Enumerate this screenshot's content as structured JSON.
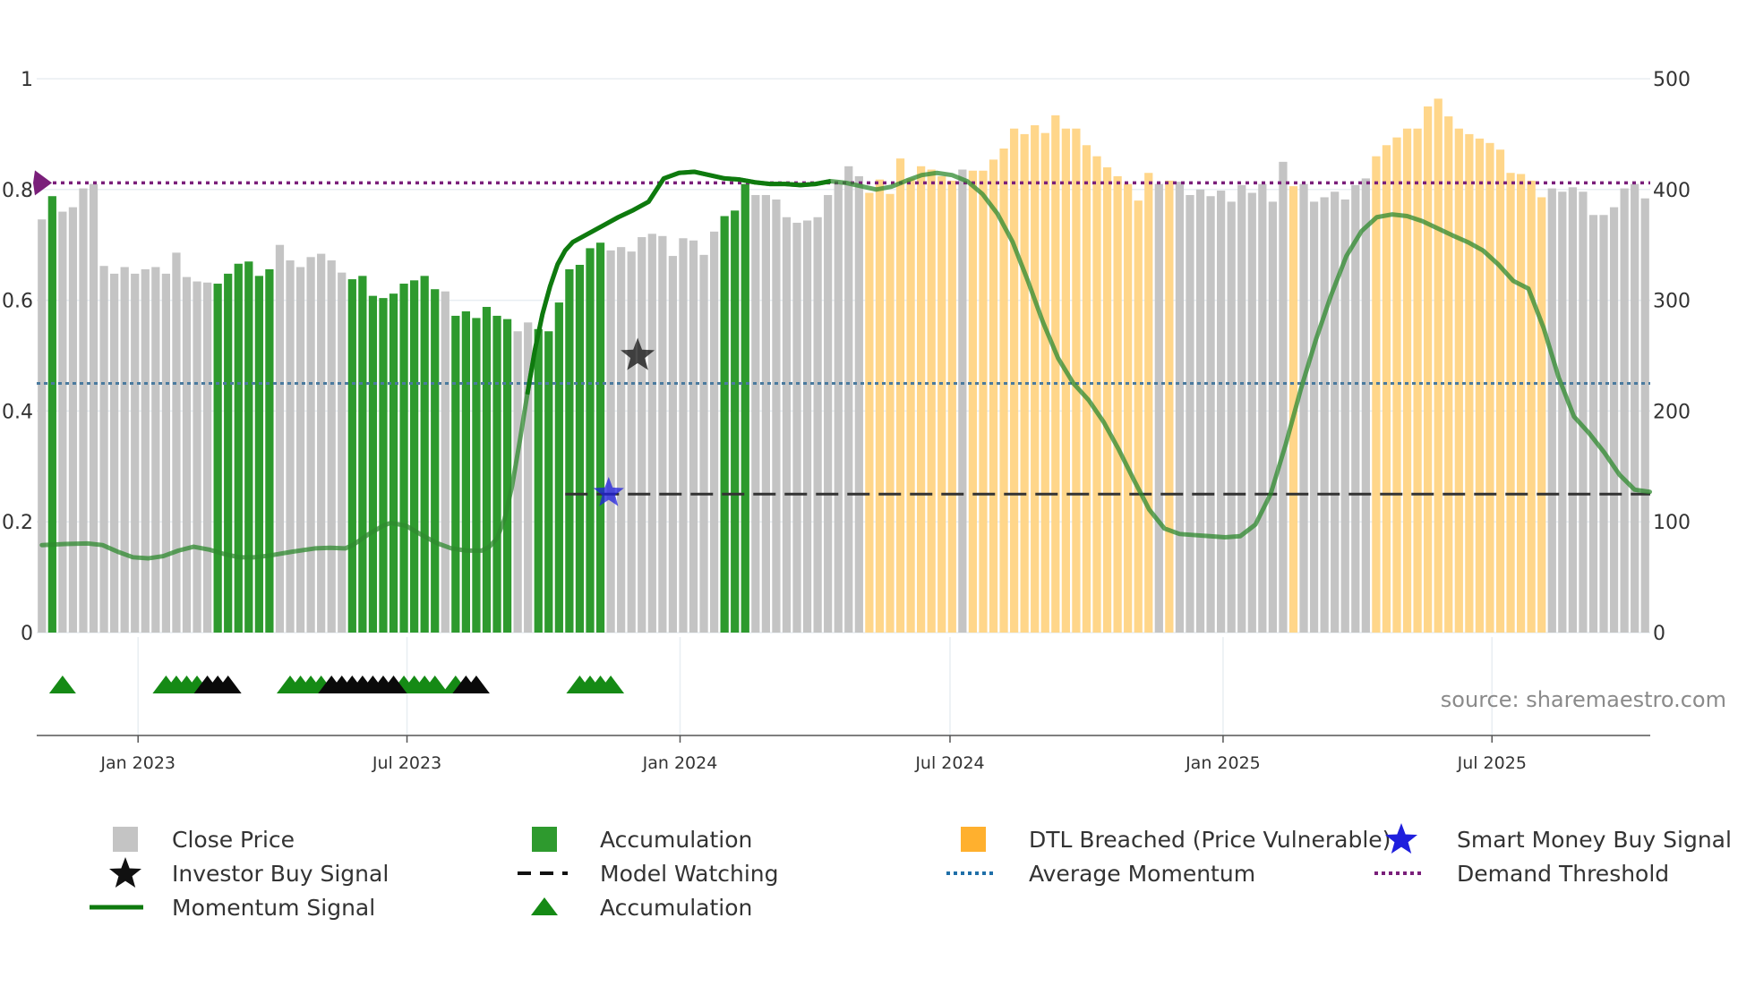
{
  "chart_data": {
    "type": "bar",
    "source": "source: sharemaestro.com",
    "left_axis": {
      "min": 0,
      "max": 1,
      "ticks": [
        {
          "v": 0,
          "label": "0"
        },
        {
          "v": 0.2,
          "label": "0.2"
        },
        {
          "v": 0.4,
          "label": "0.4"
        },
        {
          "v": 0.6,
          "label": "0.6"
        },
        {
          "v": 0.8,
          "label": "0.8"
        },
        {
          "v": 1,
          "label": "1"
        }
      ]
    },
    "right_axis": {
      "min": 0,
      "max": 500,
      "ticks": [
        {
          "v": 0,
          "label": "0"
        },
        {
          "v": 100,
          "label": "100"
        },
        {
          "v": 200,
          "label": "200"
        },
        {
          "v": 300,
          "label": "300"
        },
        {
          "v": 400,
          "label": "400"
        },
        {
          "v": 500,
          "label": "500"
        }
      ]
    },
    "x_ticks": [
      {
        "index": 9.3,
        "label": "Jan 2023"
      },
      {
        "index": 35.3,
        "label": "Jul 2023"
      },
      {
        "index": 61.7,
        "label": "Jan 2024"
      },
      {
        "index": 87.8,
        "label": "Jul 2024"
      },
      {
        "index": 114.2,
        "label": "Jan 2025"
      },
      {
        "index": 140.2,
        "label": "Jul 2025"
      }
    ],
    "close_price": [
      373,
      394,
      380,
      384,
      401,
      405,
      331,
      324,
      330,
      324,
      328,
      330,
      324,
      343,
      321,
      317,
      316,
      315,
      324,
      333,
      335,
      322,
      328,
      350,
      336,
      330,
      339,
      342,
      336,
      325,
      319,
      322,
      304,
      302,
      306,
      315,
      318,
      322,
      310,
      308,
      286,
      290,
      284,
      294,
      286,
      283,
      272,
      280,
      274,
      272,
      298,
      328,
      332,
      347,
      352,
      345,
      348,
      344,
      357,
      360,
      358,
      340,
      356,
      354,
      341,
      362,
      376,
      381,
      405,
      395,
      395,
      391,
      375,
      370,
      372,
      375,
      395,
      405,
      421,
      412,
      397,
      409,
      396,
      428,
      410,
      421,
      418,
      412,
      408,
      418,
      417,
      417,
      427,
      437,
      455,
      450,
      458,
      451,
      467,
      455,
      455,
      440,
      430,
      420,
      412,
      405,
      390,
      415,
      405,
      408,
      407,
      395,
      400,
      394,
      399,
      389,
      404,
      397,
      405,
      389,
      425,
      403,
      405,
      389,
      393,
      398,
      391,
      404,
      410,
      430,
      440,
      447,
      455,
      455,
      475,
      482,
      466,
      455,
      450,
      446,
      442,
      436,
      415,
      414,
      408,
      393,
      401,
      398,
      402,
      398,
      377,
      377,
      384,
      401,
      405,
      392
    ],
    "bar_state": "gabggggggggggggggaaaaaagggggggaaaaaaaaagaaaaaaggaaaaaaagggggggggggaaaggggggggggggggggggggggggggggggggggggggggggggggggggggggggggggggggggggggggggggggggggggggggggggg",
    "bar_state_dtl": [
      80,
      81,
      82,
      83,
      84,
      85,
      86,
      87,
      88,
      90,
      91,
      92,
      93,
      94,
      95,
      96,
      97,
      98,
      99,
      100,
      101,
      102,
      103,
      104,
      105,
      106,
      107,
      109,
      121,
      129,
      130,
      131,
      132,
      133,
      134,
      135,
      136,
      137,
      138,
      139,
      140,
      141,
      142,
      143,
      144,
      145
    ],
    "momentum": [
      [
        0,
        0.158
      ],
      [
        3,
        0.16
      ],
      [
        6,
        0.161
      ],
      [
        8,
        0.158
      ],
      [
        10,
        0.146
      ],
      [
        12,
        0.136
      ],
      [
        14,
        0.134
      ],
      [
        16,
        0.138
      ],
      [
        18,
        0.148
      ],
      [
        20,
        0.155
      ],
      [
        22,
        0.15
      ],
      [
        24,
        0.142
      ],
      [
        26,
        0.136
      ],
      [
        28,
        0.136
      ],
      [
        30,
        0.139
      ],
      [
        33,
        0.146
      ],
      [
        36,
        0.152
      ],
      [
        38,
        0.153
      ],
      [
        40,
        0.152
      ],
      [
        41,
        0.158
      ],
      [
        43,
        0.177
      ],
      [
        45,
        0.193
      ],
      [
        46,
        0.198
      ],
      [
        48,
        0.193
      ],
      [
        50,
        0.177
      ],
      [
        52,
        0.162
      ],
      [
        54,
        0.152
      ],
      [
        56,
        0.148
      ],
      [
        58,
        0.148
      ],
      [
        59,
        0.155
      ],
      [
        60,
        0.17
      ],
      [
        61,
        0.205
      ],
      [
        62,
        0.265
      ],
      [
        63,
        0.345
      ],
      [
        64,
        0.43
      ],
      [
        65,
        0.51
      ],
      [
        66,
        0.575
      ],
      [
        67,
        0.625
      ],
      [
        68,
        0.665
      ],
      [
        69,
        0.69
      ],
      [
        70,
        0.705
      ],
      [
        72,
        0.72
      ],
      [
        74,
        0.735
      ],
      [
        76,
        0.75
      ],
      [
        78,
        0.763
      ],
      [
        80,
        0.778
      ],
      [
        82,
        0.82
      ],
      [
        84,
        0.83
      ],
      [
        86,
        0.832
      ],
      [
        88,
        0.826
      ],
      [
        90,
        0.82
      ],
      [
        92,
        0.818
      ],
      [
        94,
        0.813
      ],
      [
        96,
        0.81
      ],
      [
        98,
        0.81
      ],
      [
        100,
        0.808
      ],
      [
        102,
        0.81
      ],
      [
        104,
        0.815
      ],
      [
        106,
        0.812
      ],
      [
        108,
        0.806
      ],
      [
        110,
        0.8
      ],
      [
        112,
        0.805
      ],
      [
        114,
        0.816
      ],
      [
        116,
        0.826
      ],
      [
        118,
        0.83
      ],
      [
        120,
        0.826
      ],
      [
        122,
        0.815
      ],
      [
        124,
        0.792
      ],
      [
        126,
        0.756
      ],
      [
        128,
        0.705
      ],
      [
        130,
        0.635
      ],
      [
        132,
        0.56
      ],
      [
        134,
        0.495
      ],
      [
        136,
        0.45
      ],
      [
        138,
        0.42
      ],
      [
        140,
        0.38
      ],
      [
        142,
        0.33
      ],
      [
        144,
        0.275
      ],
      [
        146,
        0.222
      ],
      [
        148,
        0.188
      ],
      [
        150,
        0.178
      ],
      [
        152,
        0.176
      ],
      [
        154,
        0.174
      ],
      [
        156,
        0.172
      ],
      [
        158,
        0.174
      ],
      [
        160,
        0.195
      ],
      [
        162,
        0.25
      ],
      [
        164,
        0.34
      ],
      [
        166,
        0.44
      ],
      [
        168,
        0.53
      ],
      [
        170,
        0.61
      ],
      [
        172,
        0.68
      ],
      [
        174,
        0.725
      ],
      [
        176,
        0.75
      ],
      [
        178,
        0.755
      ],
      [
        180,
        0.752
      ],
      [
        182,
        0.743
      ],
      [
        184,
        0.73
      ],
      [
        186,
        0.717
      ],
      [
        188,
        0.705
      ],
      [
        190,
        0.69
      ],
      [
        192,
        0.665
      ],
      [
        194,
        0.635
      ],
      [
        196,
        0.621
      ],
      [
        198,
        0.55
      ],
      [
        200,
        0.46
      ],
      [
        202,
        0.39
      ],
      [
        204,
        0.36
      ],
      [
        206,
        0.325
      ],
      [
        208,
        0.285
      ],
      [
        210,
        0.258
      ],
      [
        212,
        0.254
      ]
    ],
    "momentum_x_scale": 0.7333,
    "average_momentum": 0.45,
    "demand_threshold": 0.812,
    "model_watching": {
      "level": 0.25,
      "start_index": 50.6
    },
    "investor_buy_signal": {
      "index": 57.6,
      "value": 0.5
    },
    "smart_money_buy_signal": {
      "index": 54.8,
      "value": 0.252
    },
    "accumulation_triangles": [
      2,
      12,
      13,
      14,
      15,
      24,
      25,
      26,
      27,
      35,
      36,
      37,
      38,
      40,
      52,
      53,
      54,
      55
    ],
    "investor_triangles": [
      16,
      17,
      18,
      28,
      29,
      30,
      31,
      32,
      33,
      34,
      41,
      42
    ],
    "legend": [
      {
        "key": "close_price",
        "label": "Close Price"
      },
      {
        "key": "accumulation_bar",
        "label": "Accumulation"
      },
      {
        "key": "dtl",
        "label": "DTL Breached (Price Vulnerable)"
      },
      {
        "key": "smart_money",
        "label": "Smart Money Buy Signal"
      },
      {
        "key": "investor",
        "label": "Investor Buy Signal"
      },
      {
        "key": "model_watching",
        "label": "Model Watching"
      },
      {
        "key": "average_momentum",
        "label": "Average Momentum"
      },
      {
        "key": "demand_threshold",
        "label": "Demand Threshold"
      },
      {
        "key": "momentum",
        "label": "Momentum Signal"
      },
      {
        "key": "accumulation_tri",
        "label": "Accumulation"
      }
    ]
  },
  "colors": {
    "close": "#c4c4c4",
    "accumulation": "#2e9a2e",
    "dtl": "#ffd68a",
    "momentum": "#2f8a2f",
    "momentum_strong": "#0e7a0e",
    "average": "#4a7a9e",
    "threshold": "#7a1f7a",
    "watching": "#333333",
    "investor": "#111111",
    "smart": "#1f1fdd",
    "axis": "#555555",
    "grid": "#e8eef2"
  }
}
